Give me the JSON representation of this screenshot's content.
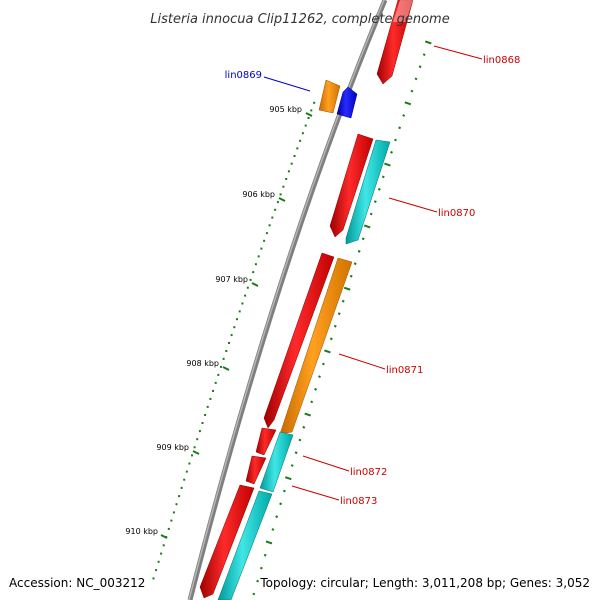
{
  "title": "Listeria innocua Clip11262, complete genome",
  "footer": {
    "accession": "Accession: NC_003212",
    "summary": "Topology: circular; Length: 3,011,208 bp; Genes: 3,052"
  },
  "colors": {
    "backbone": "#7f7f7f",
    "tick": "#1a7a1a",
    "red_label": "#cc0000",
    "blue_label": "#0000cc",
    "red_gene": "#ee0000",
    "orange_gene": "#ff8c00",
    "cyan_gene": "#00c8c8",
    "blue_gene": "#0000ee"
  },
  "scale_ticks": [
    "905 kbp",
    "906 kbp",
    "907 kbp",
    "908 kbp",
    "909 kbp",
    "910 kbp"
  ],
  "gene_labels": [
    {
      "text": "lin0868",
      "color": "red"
    },
    {
      "text": "lin0869",
      "color": "blue"
    },
    {
      "text": "lin0870",
      "color": "red"
    },
    {
      "text": "lin0871",
      "color": "red"
    },
    {
      "text": "lin0872",
      "color": "red"
    },
    {
      "text": "lin0873",
      "color": "red"
    }
  ]
}
